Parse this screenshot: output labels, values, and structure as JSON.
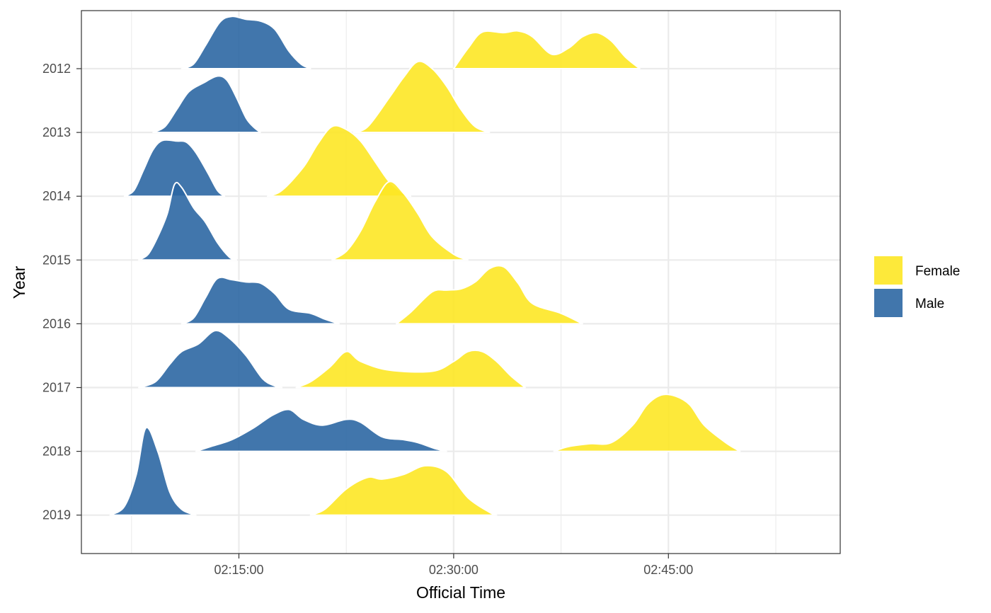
{
  "chart_data": {
    "type": "ridgeline",
    "xlabel": "Official Time",
    "ylabel": "Year",
    "x_ticks": [
      "02:15:00",
      "02:30:00",
      "02:45:00"
    ],
    "x_range": [
      "02:04:00",
      "02:57:00"
    ],
    "grid": true,
    "legend_position": "right",
    "legend": [
      {
        "name": "Female",
        "color": "#FDE725"
      },
      {
        "name": "Male",
        "color": "#2C67A3"
      }
    ],
    "years": [
      "2012",
      "2013",
      "2014",
      "2015",
      "2016",
      "2017",
      "2018",
      "2019"
    ],
    "series": [
      {
        "name": "Male",
        "color": "#2C67A3",
        "ridges": [
          {
            "year": "2012",
            "points": [
              [
                "02:11:00",
                0
              ],
              [
                "02:11:50",
                0.08
              ],
              [
                "02:12:40",
                0.4
              ],
              [
                "02:13:40",
                0.8
              ],
              [
                "02:14:30",
                0.9
              ],
              [
                "02:15:30",
                0.85
              ],
              [
                "02:16:30",
                0.82
              ],
              [
                "02:17:30",
                0.68
              ],
              [
                "02:18:30",
                0.3
              ],
              [
                "02:19:20",
                0.08
              ],
              [
                "02:20:00",
                0
              ]
            ]
          },
          {
            "year": "2013",
            "points": [
              [
                "02:09:00",
                0
              ],
              [
                "02:09:50",
                0.1
              ],
              [
                "02:10:40",
                0.4
              ],
              [
                "02:11:30",
                0.7
              ],
              [
                "02:12:30",
                0.85
              ],
              [
                "02:13:30",
                0.97
              ],
              [
                "02:14:10",
                0.9
              ],
              [
                "02:14:50",
                0.6
              ],
              [
                "02:15:30",
                0.25
              ],
              [
                "02:16:00",
                0.1
              ],
              [
                "02:16:30",
                0
              ]
            ]
          },
          {
            "year": "2014",
            "points": [
              [
                "02:07:00",
                0
              ],
              [
                "02:07:40",
                0.1
              ],
              [
                "02:08:20",
                0.45
              ],
              [
                "02:09:00",
                0.8
              ],
              [
                "02:09:40",
                0.96
              ],
              [
                "02:10:40",
                0.95
              ],
              [
                "02:11:20",
                0.93
              ],
              [
                "02:12:00",
                0.75
              ],
              [
                "02:12:50",
                0.4
              ],
              [
                "02:13:30",
                0.1
              ],
              [
                "02:14:00",
                0
              ]
            ]
          },
          {
            "year": "2015",
            "points": [
              [
                "02:08:00",
                0
              ],
              [
                "02:08:40",
                0.1
              ],
              [
                "02:09:20",
                0.4
              ],
              [
                "02:10:00",
                0.8
              ],
              [
                "02:10:30",
                1.3
              ],
              [
                "02:11:00",
                1.25
              ],
              [
                "02:11:50",
                0.9
              ],
              [
                "02:12:40",
                0.65
              ],
              [
                "02:13:30",
                0.3
              ],
              [
                "02:14:20",
                0.05
              ],
              [
                "02:14:50",
                0
              ]
            ]
          },
          {
            "year": "2016",
            "points": [
              [
                "02:11:00",
                0
              ],
              [
                "02:11:50",
                0.1
              ],
              [
                "02:12:40",
                0.45
              ],
              [
                "02:13:30",
                0.78
              ],
              [
                "02:14:30",
                0.76
              ],
              [
                "02:15:30",
                0.72
              ],
              [
                "02:16:30",
                0.7
              ],
              [
                "02:17:30",
                0.52
              ],
              [
                "02:18:30",
                0.25
              ],
              [
                "02:20:00",
                0.18
              ],
              [
                "02:21:00",
                0.08
              ],
              [
                "02:22:00",
                0
              ]
            ]
          },
          {
            "year": "2017",
            "points": [
              [
                "02:08:00",
                0
              ],
              [
                "02:09:10",
                0.1
              ],
              [
                "02:10:10",
                0.4
              ],
              [
                "02:11:00",
                0.62
              ],
              [
                "02:12:10",
                0.75
              ],
              [
                "02:13:20",
                0.98
              ],
              [
                "02:14:20",
                0.85
              ],
              [
                "02:15:30",
                0.55
              ],
              [
                "02:16:40",
                0.15
              ],
              [
                "02:17:30",
                0.03
              ],
              [
                "02:18:00",
                0
              ]
            ]
          },
          {
            "year": "2018",
            "points": [
              [
                "02:12:00",
                0
              ],
              [
                "02:13:00",
                0.08
              ],
              [
                "02:14:30",
                0.2
              ],
              [
                "02:16:00",
                0.4
              ],
              [
                "02:17:20",
                0.62
              ],
              [
                "02:18:30",
                0.72
              ],
              [
                "02:19:30",
                0.55
              ],
              [
                "02:20:50",
                0.45
              ],
              [
                "02:22:30",
                0.55
              ],
              [
                "02:23:30",
                0.5
              ],
              [
                "02:25:00",
                0.25
              ],
              [
                "02:26:30",
                0.2
              ],
              [
                "02:27:30",
                0.15
              ],
              [
                "02:28:40",
                0.05
              ],
              [
                "02:29:30",
                0
              ]
            ]
          },
          {
            "year": "2019",
            "points": [
              [
                "02:06:00",
                0
              ],
              [
                "02:07:00",
                0.15
              ],
              [
                "02:07:50",
                0.7
              ],
              [
                "02:08:30",
                1.5
              ],
              [
                "02:09:20",
                1.1
              ],
              [
                "02:10:10",
                0.4
              ],
              [
                "02:11:00",
                0.1
              ],
              [
                "02:12:00",
                0
              ]
            ]
          }
        ]
      },
      {
        "name": "Female",
        "color": "#FDE725",
        "ridges": [
          {
            "year": "2012",
            "points": [
              [
                "02:30:00",
                0
              ],
              [
                "02:31:00",
                0.35
              ],
              [
                "02:32:00",
                0.63
              ],
              [
                "02:33:30",
                0.62
              ],
              [
                "02:34:30",
                0.65
              ],
              [
                "02:35:30",
                0.55
              ],
              [
                "02:36:50",
                0.25
              ],
              [
                "02:38:00",
                0.35
              ],
              [
                "02:39:00",
                0.55
              ],
              [
                "02:40:00",
                0.62
              ],
              [
                "02:41:00",
                0.48
              ],
              [
                "02:42:00",
                0.2
              ],
              [
                "02:43:00",
                0
              ]
            ]
          },
          {
            "year": "2013",
            "points": [
              [
                "02:23:00",
                0
              ],
              [
                "02:24:00",
                0.1
              ],
              [
                "02:25:30",
                0.6
              ],
              [
                "02:26:30",
                0.95
              ],
              [
                "02:27:30",
                1.22
              ],
              [
                "02:28:30",
                1.1
              ],
              [
                "02:29:30",
                0.8
              ],
              [
                "02:30:30",
                0.4
              ],
              [
                "02:31:30",
                0.1
              ],
              [
                "02:32:30",
                0
              ]
            ]
          },
          {
            "year": "2014",
            "points": [
              [
                "02:17:00",
                0
              ],
              [
                "02:18:00",
                0.1
              ],
              [
                "02:19:30",
                0.5
              ],
              [
                "02:20:30",
                0.9
              ],
              [
                "02:21:30",
                1.2
              ],
              [
                "02:22:30",
                1.15
              ],
              [
                "02:23:30",
                0.95
              ],
              [
                "02:24:30",
                0.6
              ],
              [
                "02:25:30",
                0.25
              ],
              [
                "02:26:30",
                0.05
              ],
              [
                "02:27:00",
                0
              ]
            ]
          },
          {
            "year": "2015",
            "points": [
              [
                "02:21:30",
                0
              ],
              [
                "02:22:30",
                0.15
              ],
              [
                "02:23:30",
                0.5
              ],
              [
                "02:24:30",
                1.0
              ],
              [
                "02:25:30",
                1.35
              ],
              [
                "02:26:30",
                1.15
              ],
              [
                "02:27:30",
                0.8
              ],
              [
                "02:28:30",
                0.4
              ],
              [
                "02:30:00",
                0.1
              ],
              [
                "02:31:00",
                0
              ]
            ]
          },
          {
            "year": "2016",
            "points": [
              [
                "02:26:00",
                0
              ],
              [
                "02:27:00",
                0.2
              ],
              [
                "02:28:30",
                0.55
              ],
              [
                "02:29:30",
                0.58
              ],
              [
                "02:30:30",
                0.6
              ],
              [
                "02:31:30",
                0.72
              ],
              [
                "02:32:30",
                0.95
              ],
              [
                "02:33:30",
                0.98
              ],
              [
                "02:34:30",
                0.7
              ],
              [
                "02:35:30",
                0.35
              ],
              [
                "02:37:30",
                0.18
              ],
              [
                "02:39:00",
                0
              ]
            ]
          },
          {
            "year": "2017",
            "points": [
              [
                "02:19:00",
                0
              ],
              [
                "02:20:00",
                0.1
              ],
              [
                "02:21:20",
                0.35
              ],
              [
                "02:22:30",
                0.62
              ],
              [
                "02:23:30",
                0.45
              ],
              [
                "02:25:30",
                0.3
              ],
              [
                "02:28:30",
                0.28
              ],
              [
                "02:30:00",
                0.45
              ],
              [
                "02:31:00",
                0.62
              ],
              [
                "02:32:00",
                0.62
              ],
              [
                "02:33:00",
                0.45
              ],
              [
                "02:34:00",
                0.2
              ],
              [
                "02:35:00",
                0
              ]
            ]
          },
          {
            "year": "2018",
            "points": [
              [
                "02:37:00",
                0
              ],
              [
                "02:38:00",
                0.08
              ],
              [
                "02:39:30",
                0.13
              ],
              [
                "02:41:00",
                0.15
              ],
              [
                "02:42:30",
                0.45
              ],
              [
                "02:43:30",
                0.8
              ],
              [
                "02:44:30",
                0.97
              ],
              [
                "02:45:30",
                0.95
              ],
              [
                "02:46:30",
                0.8
              ],
              [
                "02:47:30",
                0.45
              ],
              [
                "02:49:00",
                0.15
              ],
              [
                "02:50:00",
                0
              ]
            ]
          },
          {
            "year": "2019",
            "points": [
              [
                "02:20:00",
                0
              ],
              [
                "02:21:00",
                0.1
              ],
              [
                "02:22:30",
                0.45
              ],
              [
                "02:24:00",
                0.65
              ],
              [
                "02:25:00",
                0.62
              ],
              [
                "02:26:30",
                0.7
              ],
              [
                "02:28:00",
                0.85
              ],
              [
                "02:29:30",
                0.75
              ],
              [
                "02:31:00",
                0.3
              ],
              [
                "02:32:30",
                0.05
              ],
              [
                "02:33:00",
                0
              ]
            ]
          }
        ]
      }
    ]
  }
}
